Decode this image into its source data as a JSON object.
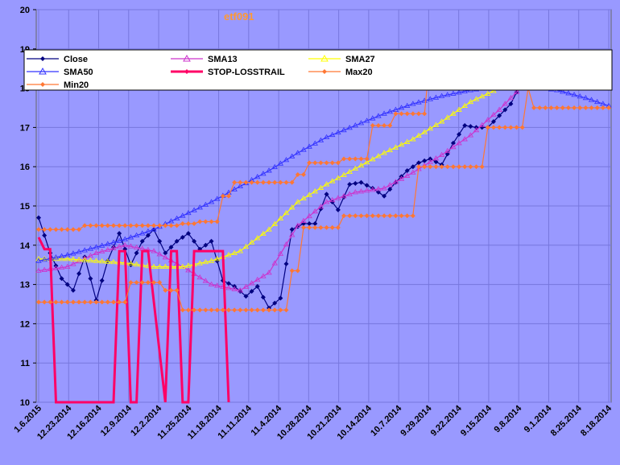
{
  "chart_data": {
    "type": "line",
    "title": "etf091",
    "ylim": [
      10,
      20
    ],
    "yticks": [
      "10",
      "11",
      "12",
      "13",
      "14",
      "15",
      "16",
      "17",
      "18",
      "19",
      "20"
    ],
    "x_tick_labels": [
      "1.6.2015",
      "12.23.2014",
      "12.16.2014",
      "12.9.2014",
      "12.2.2014",
      "11.25.2014",
      "11.18.2014",
      "11.11.2014",
      "11.4.2014",
      "10.28.2014",
      "10.21.2014",
      "10.14.2014",
      "10.7.2014",
      "9.29.2014",
      "9.22.2014",
      "9.15.2014",
      "9.8.2014",
      "9.1.2014",
      "8.25.2014",
      "8.18.2014"
    ],
    "n_points": 100,
    "series": [
      {
        "name": "Close",
        "color": "#000080",
        "marker": "diamond",
        "key_i": [
          0,
          2,
          4,
          6,
          8,
          10,
          12,
          14,
          16,
          18,
          20,
          22,
          24,
          26,
          28,
          30,
          32,
          34,
          36,
          38,
          40,
          42,
          44,
          46,
          48,
          50,
          52,
          54,
          56,
          58,
          60,
          62,
          64,
          66,
          68,
          70,
          72,
          74,
          76,
          78,
          80,
          82,
          84,
          86,
          88,
          90,
          92,
          94,
          96,
          98,
          99
        ],
        "key_y": [
          14.7,
          13.8,
          13.15,
          12.85,
          13.7,
          12.6,
          13.6,
          14.3,
          13.5,
          14.1,
          14.4,
          13.8,
          14.1,
          14.3,
          13.9,
          14.1,
          13.1,
          12.95,
          12.7,
          12.95,
          12.4,
          12.65,
          14.4,
          14.55,
          14.55,
          15.3,
          14.9,
          15.55,
          15.6,
          15.45,
          15.25,
          15.6,
          15.9,
          16.1,
          16.2,
          16.05,
          16.6,
          17.05,
          17.0,
          17.0,
          17.3,
          17.6,
          18.2,
          18.85,
          18.3,
          18.0,
          18.2,
          18.45,
          18.45,
          18.5,
          18.8
        ]
      },
      {
        "name": "SMA13",
        "color": "#cc33cc",
        "marker": "triangle",
        "key_i": [
          0,
          5,
          10,
          15,
          20,
          25,
          30,
          35,
          40,
          45,
          50,
          55,
          60,
          65,
          70,
          75,
          80,
          85,
          90,
          95,
          99
        ],
        "key_y": [
          13.35,
          13.45,
          13.8,
          14.0,
          13.85,
          13.45,
          13.0,
          12.85,
          13.3,
          14.5,
          15.1,
          15.35,
          15.45,
          15.85,
          16.3,
          16.8,
          17.45,
          18.2,
          18.45,
          18.4,
          18.15
        ]
      },
      {
        "name": "SMA27",
        "color": "#ffff00",
        "marker": "triangle",
        "key_i": [
          0,
          5,
          10,
          15,
          20,
          25,
          30,
          35,
          40,
          45,
          50,
          55,
          60,
          65,
          70,
          75,
          80,
          85,
          90,
          95,
          99
        ],
        "key_y": [
          13.65,
          13.65,
          13.6,
          13.55,
          13.45,
          13.45,
          13.6,
          13.85,
          14.4,
          15.1,
          15.55,
          15.95,
          16.35,
          16.7,
          17.15,
          17.65,
          18.0,
          18.15,
          18.1,
          18.1,
          18.05
        ]
      },
      {
        "name": "SMA50",
        "color": "#3333ff",
        "marker": "triangle",
        "key_i": [
          0,
          5,
          10,
          15,
          20,
          25,
          30,
          35,
          40,
          45,
          50,
          55,
          60,
          65,
          70,
          75,
          80,
          85,
          90,
          95,
          99
        ],
        "key_y": [
          13.6,
          13.75,
          13.95,
          14.15,
          14.4,
          14.75,
          15.1,
          15.5,
          15.9,
          16.35,
          16.75,
          17.05,
          17.35,
          17.6,
          17.8,
          17.95,
          18.05,
          18.05,
          17.95,
          17.75,
          17.55
        ]
      },
      {
        "name": "STOP-LOSSTRAIL",
        "color": "#ff0066",
        "marker": "none",
        "step": true,
        "key_i": [
          0,
          1,
          2,
          3,
          4,
          13,
          14,
          15,
          16,
          17,
          18,
          19,
          22,
          23,
          24,
          25,
          26,
          27,
          32,
          33
        ],
        "key_y": [
          14.2,
          13.9,
          13.9,
          10,
          10,
          10,
          13.85,
          13.85,
          10,
          10,
          13.85,
          13.85,
          10,
          13.85,
          13.85,
          10,
          10,
          13.85,
          13.85,
          10
        ]
      },
      {
        "name": "Max20",
        "color": "#ff7733",
        "marker": "diamond",
        "step": true,
        "key_i": [
          0,
          4,
          8,
          10,
          18,
          25,
          28,
          32,
          34,
          40,
          45,
          47,
          53,
          58,
          62,
          68,
          74,
          99
        ],
        "key_y": [
          14.4,
          14.4,
          14.5,
          14.5,
          14.5,
          14.55,
          14.6,
          15.25,
          15.6,
          15.6,
          15.8,
          16.1,
          16.2,
          17.05,
          17.35,
          18.85,
          18.85,
          18.9
        ]
      },
      {
        "name": "Min20",
        "color": "#ff7733",
        "marker": "diamond",
        "step": true,
        "key_i": [
          0,
          10,
          16,
          22,
          25,
          38,
          44,
          46,
          53,
          58,
          66,
          72,
          78,
          85,
          86,
          99
        ],
        "key_y": [
          12.55,
          12.55,
          13.05,
          12.85,
          12.35,
          12.35,
          13.35,
          14.45,
          14.75,
          14.75,
          16.0,
          16.0,
          17.0,
          18.0,
          17.5,
          17.5
        ]
      }
    ],
    "legend": {
      "placement": "top-left"
    }
  }
}
